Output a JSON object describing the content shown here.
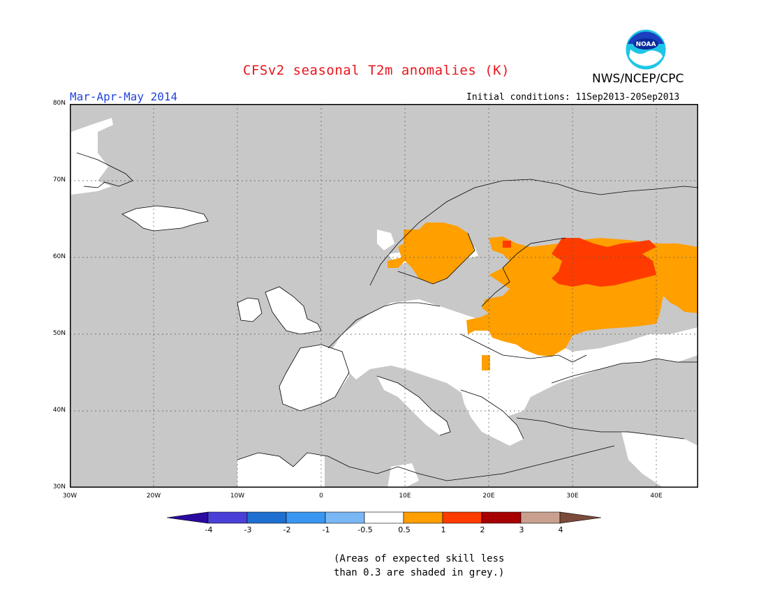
{
  "header": {
    "title": "CFSv2 seasonal T2m anomalies (K)",
    "season": "Mar-Apr-May 2014",
    "initial_conditions": "Initial conditions: 11Sep2013-20Sep2013",
    "agency": "NWS/NCEP/CPC",
    "logo_text": "NOAA"
  },
  "map": {
    "lat_labels": [
      "80N",
      "70N",
      "60N",
      "50N",
      "40N",
      "30N"
    ],
    "lon_labels": [
      "30W",
      "20W",
      "10W",
      "0",
      "10E",
      "20E",
      "30E",
      "40E"
    ],
    "extent": {
      "lon": [
        -30,
        45
      ],
      "lat": [
        30,
        80
      ]
    },
    "grid": true,
    "colors": {
      "no_skill_grey": "#c8c8c8",
      "neutral_white": "#ffffff",
      "warm_0_5_1": "#ff9f00",
      "warm_1_2": "#ff3b00"
    }
  },
  "colorbar": {
    "tick_labels": [
      "-4",
      "-3",
      "-2",
      "-1",
      "-0.5",
      "0.5",
      "1",
      "2",
      "3",
      "4"
    ],
    "colors": [
      "#2a0aa0",
      "#4a40d8",
      "#1f6fd0",
      "#3a96f0",
      "#7ab8f5",
      "#ffffff",
      "#ff9f00",
      "#ff3b00",
      "#a60000",
      "#c9a08f",
      "#7a4a3a"
    ]
  },
  "footnote": {
    "line1": "(Areas of expected skill less",
    "line2": "than 0.3 are shaded in grey.)"
  }
}
